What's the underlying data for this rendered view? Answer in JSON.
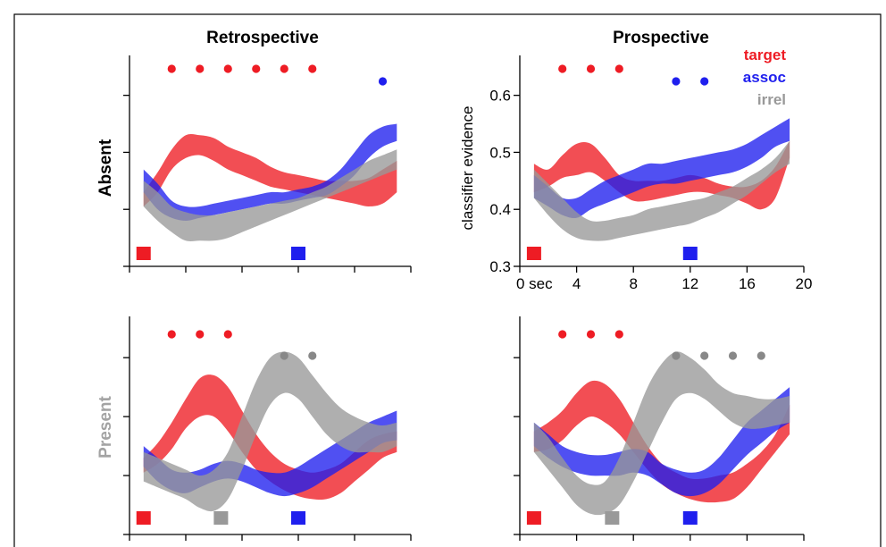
{
  "chart_data": [
    {
      "type": "area",
      "panel": "absent-retrospective",
      "column_title": "Retrospective",
      "row_label": "Absent",
      "x": [
        1,
        2,
        3,
        4,
        5,
        6,
        7,
        8,
        9,
        10,
        11,
        12,
        13,
        14,
        15,
        16,
        17,
        18,
        19
      ],
      "series": [
        {
          "name": "target",
          "color": "#ee1c24",
          "lower": [
            0.405,
            0.43,
            0.47,
            0.49,
            0.495,
            0.485,
            0.47,
            0.46,
            0.45,
            0.44,
            0.435,
            0.43,
            0.425,
            0.42,
            0.415,
            0.41,
            0.405,
            0.41,
            0.43
          ],
          "upper": [
            0.43,
            0.465,
            0.505,
            0.53,
            0.53,
            0.525,
            0.51,
            0.5,
            0.49,
            0.475,
            0.465,
            0.46,
            0.455,
            0.45,
            0.45,
            0.45,
            0.455,
            0.47,
            0.485
          ]
        },
        {
          "name": "assoc",
          "color": "#1f1fee",
          "lower": [
            0.43,
            0.4,
            0.385,
            0.38,
            0.385,
            0.39,
            0.395,
            0.4,
            0.405,
            0.41,
            0.41,
            0.415,
            0.42,
            0.425,
            0.44,
            0.46,
            0.49,
            0.51,
            0.52
          ],
          "upper": [
            0.47,
            0.445,
            0.415,
            0.405,
            0.405,
            0.41,
            0.415,
            0.42,
            0.425,
            0.43,
            0.43,
            0.435,
            0.44,
            0.45,
            0.47,
            0.5,
            0.53,
            0.545,
            0.55
          ]
        },
        {
          "name": "irrel",
          "color": "#999999",
          "lower": [
            0.405,
            0.38,
            0.36,
            0.345,
            0.345,
            0.345,
            0.35,
            0.36,
            0.37,
            0.38,
            0.39,
            0.4,
            0.41,
            0.42,
            0.43,
            0.44,
            0.45,
            0.46,
            0.47
          ],
          "upper": [
            0.45,
            0.43,
            0.405,
            0.395,
            0.39,
            0.39,
            0.395,
            0.4,
            0.405,
            0.41,
            0.415,
            0.42,
            0.43,
            0.44,
            0.455,
            0.47,
            0.485,
            0.495,
            0.505
          ]
        }
      ],
      "sig_markers": [
        {
          "x": [
            3,
            5,
            7,
            9,
            11,
            13
          ],
          "color": "#ee1c24"
        },
        {
          "x": [
            18
          ],
          "color": "#1f1fee"
        }
      ],
      "event_markers": [
        {
          "x": 1,
          "color": "#ee1c24"
        },
        {
          "x": 12,
          "color": "#1f1fee"
        }
      ],
      "xlim": [
        0,
        20
      ],
      "ylim": [
        0.3,
        0.67
      ]
    },
    {
      "type": "area",
      "panel": "absent-prospective",
      "column_title": "Prospective",
      "ylabel": "classifier evidence",
      "x": [
        1,
        2,
        3,
        4,
        5,
        6,
        7,
        8,
        9,
        10,
        11,
        12,
        13,
        14,
        15,
        16,
        17,
        18,
        19
      ],
      "yticks": [
        "0.3",
        "0.4",
        "0.5",
        "0.6"
      ],
      "ytick_values": [
        0.3,
        0.4,
        0.5,
        0.6
      ],
      "xticks": [
        "0 sec",
        "4",
        "8",
        "12",
        "16",
        "20"
      ],
      "xtick_values": [
        0,
        4,
        8,
        12,
        16,
        20
      ],
      "legend": [
        {
          "label": "target",
          "color": "#ee1c24"
        },
        {
          "label": "assoc",
          "color": "#1f1fee"
        },
        {
          "label": "irrel",
          "color": "#999999"
        }
      ],
      "series": [
        {
          "name": "target",
          "color": "#ee1c24",
          "lower": [
            0.43,
            0.44,
            0.455,
            0.46,
            0.465,
            0.45,
            0.43,
            0.415,
            0.415,
            0.42,
            0.425,
            0.43,
            0.43,
            0.425,
            0.42,
            0.41,
            0.4,
            0.42,
            0.49
          ],
          "upper": [
            0.48,
            0.47,
            0.495,
            0.515,
            0.515,
            0.49,
            0.46,
            0.45,
            0.45,
            0.45,
            0.455,
            0.46,
            0.455,
            0.445,
            0.44,
            0.44,
            0.45,
            0.475,
            0.52
          ]
        },
        {
          "name": "assoc",
          "color": "#1f1fee",
          "lower": [
            0.42,
            0.405,
            0.39,
            0.385,
            0.4,
            0.41,
            0.42,
            0.43,
            0.44,
            0.445,
            0.445,
            0.45,
            0.455,
            0.46,
            0.465,
            0.475,
            0.49,
            0.51,
            0.52
          ],
          "upper": [
            0.46,
            0.44,
            0.42,
            0.42,
            0.435,
            0.45,
            0.46,
            0.47,
            0.48,
            0.48,
            0.485,
            0.49,
            0.495,
            0.5,
            0.505,
            0.515,
            0.53,
            0.545,
            0.56
          ]
        },
        {
          "name": "irrel",
          "color": "#999999",
          "lower": [
            0.42,
            0.39,
            0.365,
            0.35,
            0.345,
            0.345,
            0.35,
            0.355,
            0.36,
            0.365,
            0.37,
            0.375,
            0.385,
            0.395,
            0.41,
            0.425,
            0.445,
            0.465,
            0.48
          ],
          "upper": [
            0.47,
            0.445,
            0.42,
            0.395,
            0.38,
            0.38,
            0.385,
            0.39,
            0.4,
            0.405,
            0.41,
            0.415,
            0.42,
            0.43,
            0.44,
            0.455,
            0.47,
            0.49,
            0.52
          ]
        }
      ],
      "sig_markers": [
        {
          "x": [
            3,
            5,
            7
          ],
          "color": "#ee1c24"
        },
        {
          "x": [
            11,
            13
          ],
          "color": "#1f1fee"
        }
      ],
      "event_markers": [
        {
          "x": 1,
          "color": "#ee1c24"
        },
        {
          "x": 12,
          "color": "#1f1fee"
        }
      ],
      "xlim": [
        0,
        20
      ],
      "ylim": [
        0.3,
        0.67
      ]
    },
    {
      "type": "area",
      "panel": "present-retrospective",
      "row_label": "Present",
      "x": [
        1,
        2,
        3,
        4,
        5,
        6,
        7,
        8,
        9,
        10,
        11,
        12,
        13,
        14,
        15,
        16,
        17,
        18,
        19
      ],
      "series": [
        {
          "name": "target",
          "color": "#ee1c24",
          "lower": [
            0.405,
            0.42,
            0.445,
            0.48,
            0.5,
            0.5,
            0.475,
            0.44,
            0.41,
            0.39,
            0.375,
            0.365,
            0.36,
            0.36,
            0.37,
            0.39,
            0.41,
            0.43,
            0.44
          ],
          "upper": [
            0.43,
            0.455,
            0.49,
            0.53,
            0.565,
            0.57,
            0.55,
            0.51,
            0.47,
            0.44,
            0.42,
            0.41,
            0.405,
            0.41,
            0.42,
            0.44,
            0.46,
            0.47,
            0.475
          ]
        },
        {
          "name": "assoc",
          "color": "#1f1fee",
          "lower": [
            0.415,
            0.39,
            0.375,
            0.37,
            0.38,
            0.39,
            0.395,
            0.39,
            0.38,
            0.37,
            0.365,
            0.37,
            0.38,
            0.395,
            0.41,
            0.425,
            0.44,
            0.455,
            0.46
          ],
          "upper": [
            0.45,
            0.43,
            0.41,
            0.405,
            0.41,
            0.42,
            0.425,
            0.42,
            0.41,
            0.405,
            0.405,
            0.415,
            0.43,
            0.445,
            0.46,
            0.475,
            0.49,
            0.5,
            0.51
          ]
        },
        {
          "name": "irrel",
          "color": "#999999",
          "lower": [
            0.39,
            0.38,
            0.37,
            0.36,
            0.345,
            0.34,
            0.36,
            0.41,
            0.47,
            0.52,
            0.54,
            0.53,
            0.5,
            0.47,
            0.45,
            0.44,
            0.44,
            0.44,
            0.45
          ],
          "upper": [
            0.44,
            0.43,
            0.42,
            0.41,
            0.4,
            0.41,
            0.44,
            0.5,
            0.56,
            0.6,
            0.61,
            0.6,
            0.57,
            0.54,
            0.515,
            0.5,
            0.49,
            0.485,
            0.49
          ]
        }
      ],
      "sig_markers": [
        {
          "x": [
            3,
            5,
            7
          ],
          "color": "#ee1c24"
        },
        {
          "x": [
            11,
            13
          ],
          "color": "#888888"
        }
      ],
      "event_markers": [
        {
          "x": 1,
          "color": "#ee1c24"
        },
        {
          "x": 6.5,
          "color": "#999999"
        },
        {
          "x": 12,
          "color": "#1f1fee"
        }
      ],
      "xlim": [
        0,
        20
      ],
      "ylim": [
        0.3,
        0.67
      ]
    },
    {
      "type": "area",
      "panel": "present-prospective",
      "x": [
        1,
        2,
        3,
        4,
        5,
        6,
        7,
        8,
        9,
        10,
        11,
        12,
        13,
        14,
        15,
        16,
        17,
        18,
        19
      ],
      "series": [
        {
          "name": "target",
          "color": "#ee1c24",
          "lower": [
            0.44,
            0.445,
            0.46,
            0.485,
            0.5,
            0.49,
            0.47,
            0.44,
            0.41,
            0.385,
            0.37,
            0.36,
            0.355,
            0.355,
            0.36,
            0.38,
            0.41,
            0.44,
            0.47
          ],
          "upper": [
            0.475,
            0.49,
            0.51,
            0.54,
            0.56,
            0.555,
            0.53,
            0.49,
            0.45,
            0.42,
            0.405,
            0.395,
            0.395,
            0.4,
            0.405,
            0.42,
            0.44,
            0.47,
            0.52
          ]
        },
        {
          "name": "assoc",
          "color": "#1f1fee",
          "lower": [
            0.45,
            0.43,
            0.415,
            0.405,
            0.4,
            0.4,
            0.4,
            0.405,
            0.4,
            0.385,
            0.37,
            0.365,
            0.37,
            0.385,
            0.41,
            0.435,
            0.455,
            0.475,
            0.49
          ],
          "upper": [
            0.49,
            0.47,
            0.45,
            0.44,
            0.435,
            0.435,
            0.44,
            0.445,
            0.44,
            0.42,
            0.41,
            0.405,
            0.41,
            0.43,
            0.46,
            0.49,
            0.51,
            0.53,
            0.55
          ]
        },
        {
          "name": "irrel",
          "color": "#999999",
          "lower": [
            0.44,
            0.41,
            0.38,
            0.35,
            0.335,
            0.335,
            0.35,
            0.39,
            0.44,
            0.49,
            0.53,
            0.54,
            0.53,
            0.51,
            0.49,
            0.48,
            0.48,
            0.485,
            0.49
          ],
          "upper": [
            0.49,
            0.465,
            0.43,
            0.4,
            0.385,
            0.39,
            0.43,
            0.49,
            0.55,
            0.59,
            0.61,
            0.6,
            0.58,
            0.555,
            0.54,
            0.535,
            0.53,
            0.53,
            0.535
          ]
        }
      ],
      "sig_markers": [
        {
          "x": [
            3,
            5,
            7
          ],
          "color": "#ee1c24"
        },
        {
          "x": [
            11,
            13,
            15,
            17
          ],
          "color": "#888888"
        }
      ],
      "event_markers": [
        {
          "x": 1,
          "color": "#ee1c24"
        },
        {
          "x": 6.5,
          "color": "#999999"
        },
        {
          "x": 12,
          "color": "#1f1fee"
        }
      ],
      "xlim": [
        0,
        20
      ],
      "ylim": [
        0.3,
        0.67
      ]
    }
  ]
}
